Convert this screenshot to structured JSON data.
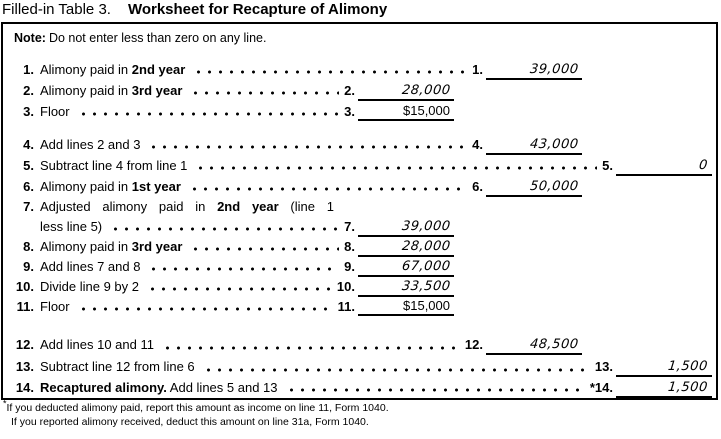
{
  "title": {
    "prefix": "Filled-in Table 3.",
    "main": "Worksheet for Recapture of Alimony"
  },
  "note": {
    "label": "Note:",
    "text": "Do not enter less than zero on any line."
  },
  "rows": [
    {
      "num": "1.",
      "pre": "Alimony paid in ",
      "bold": "2nd year",
      "post": "",
      "ans_num": "1.",
      "value": "39,000"
    },
    {
      "num": "2.",
      "pre": "Alimony paid in ",
      "bold": "3rd year",
      "post": "",
      "ans_num": "2.",
      "value": "28,000"
    },
    {
      "num": "3.",
      "pre": "Floor",
      "bold": "",
      "post": "",
      "ans_num": "3.",
      "value": "$15,000"
    },
    {
      "num": "4.",
      "pre": "Add lines 2 and 3",
      "bold": "",
      "post": "",
      "ans_num": "4.",
      "value": "43,000"
    },
    {
      "num": "5.",
      "pre": "Subtract line 4 from line 1",
      "bold": "",
      "post": "",
      "ans_num": "5.",
      "value": "0"
    },
    {
      "num": "6.",
      "pre": "Alimony paid in ",
      "bold": "1st year",
      "post": "",
      "ans_num": "6.",
      "value": "50,000"
    },
    {
      "num": "7.",
      "pre": "Adjusted alimony paid in ",
      "bold": "2nd year",
      "post": " (line 1",
      "label2": "less line 5)",
      "ans_num": "7.",
      "value": "39,000"
    },
    {
      "num": "8.",
      "pre": "Alimony paid in ",
      "bold": "3rd year",
      "post": "",
      "ans_num": "8.",
      "value": "28,000"
    },
    {
      "num": "9.",
      "pre": "Add lines 7 and 8",
      "bold": "",
      "post": "",
      "ans_num": "9.",
      "value": "67,000"
    },
    {
      "num": "10.",
      "pre": "Divide line 9 by 2",
      "bold": "",
      "post": "",
      "ans_num": "10.",
      "value": "33,500"
    },
    {
      "num": "11.",
      "pre": "Floor",
      "bold": "",
      "post": "",
      "ans_num": "11.",
      "value": "$15,000"
    },
    {
      "num": "12.",
      "pre": "Add lines 10 and 11",
      "bold": "",
      "post": "",
      "ans_num": "12.",
      "value": "48,500"
    },
    {
      "num": "13.",
      "pre": "Subtract line 12 from line 6",
      "bold": "",
      "post": "",
      "ans_num": "13.",
      "value": "1,500"
    },
    {
      "num": "14.",
      "pre": "",
      "bold": "Recaptured alimony.",
      "post": " Add lines 5 and 13",
      "ans_num": "*14.",
      "value": "1,500"
    }
  ],
  "footnotes": {
    "marker": "*",
    "line1": "If you deducted alimony paid, report this amount as income on line 11, Form 1040.",
    "line2": "If you reported alimony received, deduct this amount on line 31a, Form 1040."
  },
  "colors": {
    "ink": "#000000",
    "paper": "#ffffff"
  }
}
